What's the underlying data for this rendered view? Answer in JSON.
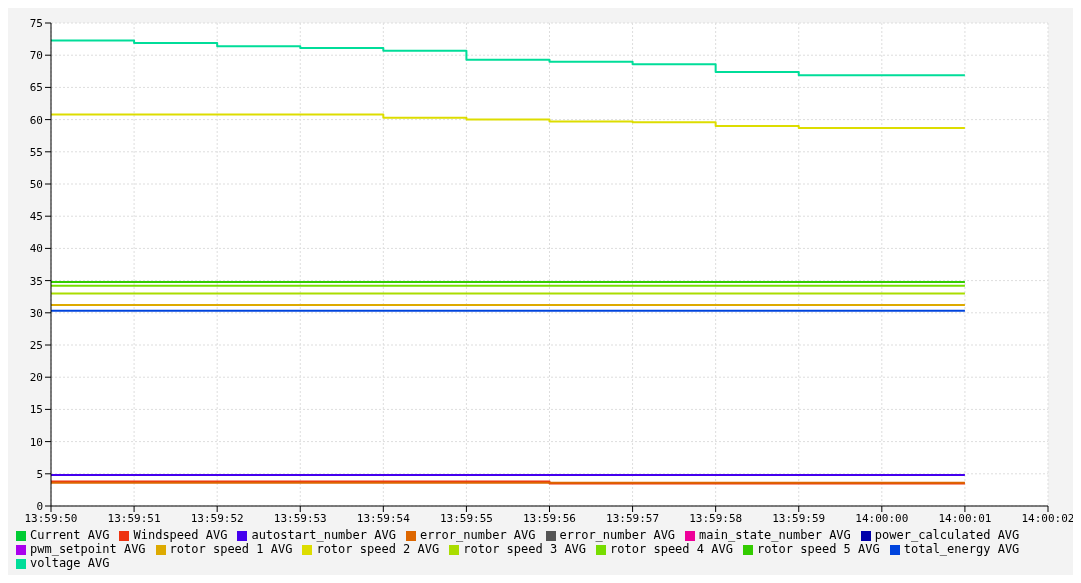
{
  "chart_data": {
    "type": "step",
    "x": [
      13.9972222,
      13.9975,
      13.9977778,
      13.9980556,
      13.9983333,
      13.9986111,
      13.9988889,
      13.9991667,
      13.9994444,
      13.9997222,
      14.0,
      14.0002778
    ],
    "xlim": [
      13.9972222,
      14.0005556
    ],
    "xticks": [
      {
        "value": 13.9972222,
        "label": "13:59:50"
      },
      {
        "value": 13.9975,
        "label": "13:59:51"
      },
      {
        "value": 13.9977778,
        "label": "13:59:52"
      },
      {
        "value": 13.9980556,
        "label": "13:59:53"
      },
      {
        "value": 13.9983333,
        "label": "13:59:54"
      },
      {
        "value": 13.9986111,
        "label": "13:59:55"
      },
      {
        "value": 13.9988889,
        "label": "13:59:56"
      },
      {
        "value": 13.9991667,
        "label": "13:59:57"
      },
      {
        "value": 13.9994444,
        "label": "13:59:58"
      },
      {
        "value": 13.9997222,
        "label": "13:59:59"
      },
      {
        "value": 14.0,
        "label": "14:00:00"
      },
      {
        "value": 14.0002778,
        "label": "14:00:01"
      },
      {
        "value": 14.0005556,
        "label": "14:00:02"
      }
    ],
    "ylim": [
      0,
      75
    ],
    "yticks": [
      0,
      5,
      10,
      15,
      20,
      25,
      30,
      35,
      40,
      45,
      50,
      55,
      60,
      65,
      70,
      75
    ],
    "grid": true,
    "legend": "bottom",
    "marker": "none",
    "series": [
      {
        "name": "Windspeed AVG",
        "color": "#ee3311",
        "values": [
          3.8,
          3.8,
          3.8,
          3.8,
          3.8,
          3.8,
          3.5,
          3.5,
          3.5,
          3.5,
          3.5,
          3.5
        ]
      },
      {
        "name": "error_number AVG",
        "color": "#dd6600",
        "values": [
          3.6,
          3.6,
          3.6,
          3.6,
          3.6,
          3.6,
          3.6,
          3.6,
          3.6,
          3.6,
          3.6,
          3.6
        ]
      },
      {
        "name": "rotor speed 1 AVG",
        "color": "#ddaa00",
        "values": [
          31.2,
          31.2,
          31.2,
          31.2,
          31.2,
          31.2,
          31.2,
          31.2,
          31.2,
          31.2,
          31.2,
          31.2
        ]
      },
      {
        "name": "rotor speed 2 AVG",
        "color": "#dddd00",
        "values": [
          60.8,
          60.8,
          60.8,
          60.8,
          60.3,
          60.0,
          59.7,
          59.6,
          59.0,
          58.7,
          58.7,
          58.7
        ]
      },
      {
        "name": "rotor speed 3 AVG",
        "color": "#aadd00",
        "values": [
          33.0,
          33.0,
          33.0,
          33.0,
          33.0,
          33.0,
          33.0,
          33.0,
          33.0,
          33.0,
          33.0,
          33.0
        ]
      },
      {
        "name": "rotor speed 4 AVG",
        "color": "#77dd00",
        "values": [
          34.2,
          34.2,
          34.2,
          34.2,
          34.2,
          34.2,
          34.2,
          34.2,
          34.2,
          34.2,
          34.2,
          34.2
        ]
      },
      {
        "name": "rotor speed 5 AVG",
        "color": "#33cc00",
        "values": [
          34.8,
          34.8,
          34.8,
          34.8,
          34.8,
          34.8,
          34.8,
          34.8,
          34.8,
          34.8,
          34.8,
          34.8
        ]
      },
      {
        "name": "Current AVG",
        "color": "#00cc33",
        "values": [
          null,
          null,
          null,
          null,
          null,
          null,
          null,
          null,
          null,
          null,
          null,
          null
        ]
      },
      {
        "name": "voltage AVG",
        "color": "#00dd99",
        "values": [
          72.3,
          71.9,
          71.4,
          71.1,
          70.7,
          69.3,
          69.0,
          68.6,
          67.4,
          66.9,
          66.9,
          66.9
        ]
      },
      {
        "name": "total_energy AVG",
        "color": "#0044dd",
        "values": [
          30.3,
          30.3,
          30.3,
          30.3,
          30.3,
          30.3,
          30.3,
          30.3,
          30.3,
          30.3,
          30.3,
          30.3
        ]
      },
      {
        "name": "power_calculated AVG",
        "color": "#0000aa",
        "values": [
          null,
          null,
          null,
          null,
          null,
          null,
          null,
          null,
          null,
          null,
          null,
          null
        ]
      },
      {
        "name": "autostart_number AVG",
        "color": "#4400ee",
        "values": [
          4.8,
          4.8,
          4.8,
          4.8,
          4.8,
          4.8,
          4.8,
          4.8,
          4.8,
          4.8,
          4.8,
          4.8
        ]
      },
      {
        "name": "pwm_setpoint AVG",
        "color": "#aa00ee",
        "values": [
          null,
          null,
          null,
          null,
          null,
          null,
          null,
          null,
          null,
          null,
          null,
          null
        ]
      },
      {
        "name": "main_state_number AVG",
        "color": "#ee0099",
        "values": [
          null,
          null,
          null,
          null,
          null,
          null,
          null,
          null,
          null,
          null,
          null,
          null
        ]
      },
      {
        "name": "error_number AVG",
        "color": "#555555",
        "values": [
          null,
          null,
          null,
          null,
          null,
          null,
          null,
          null,
          null,
          null,
          null,
          null
        ]
      }
    ]
  }
}
